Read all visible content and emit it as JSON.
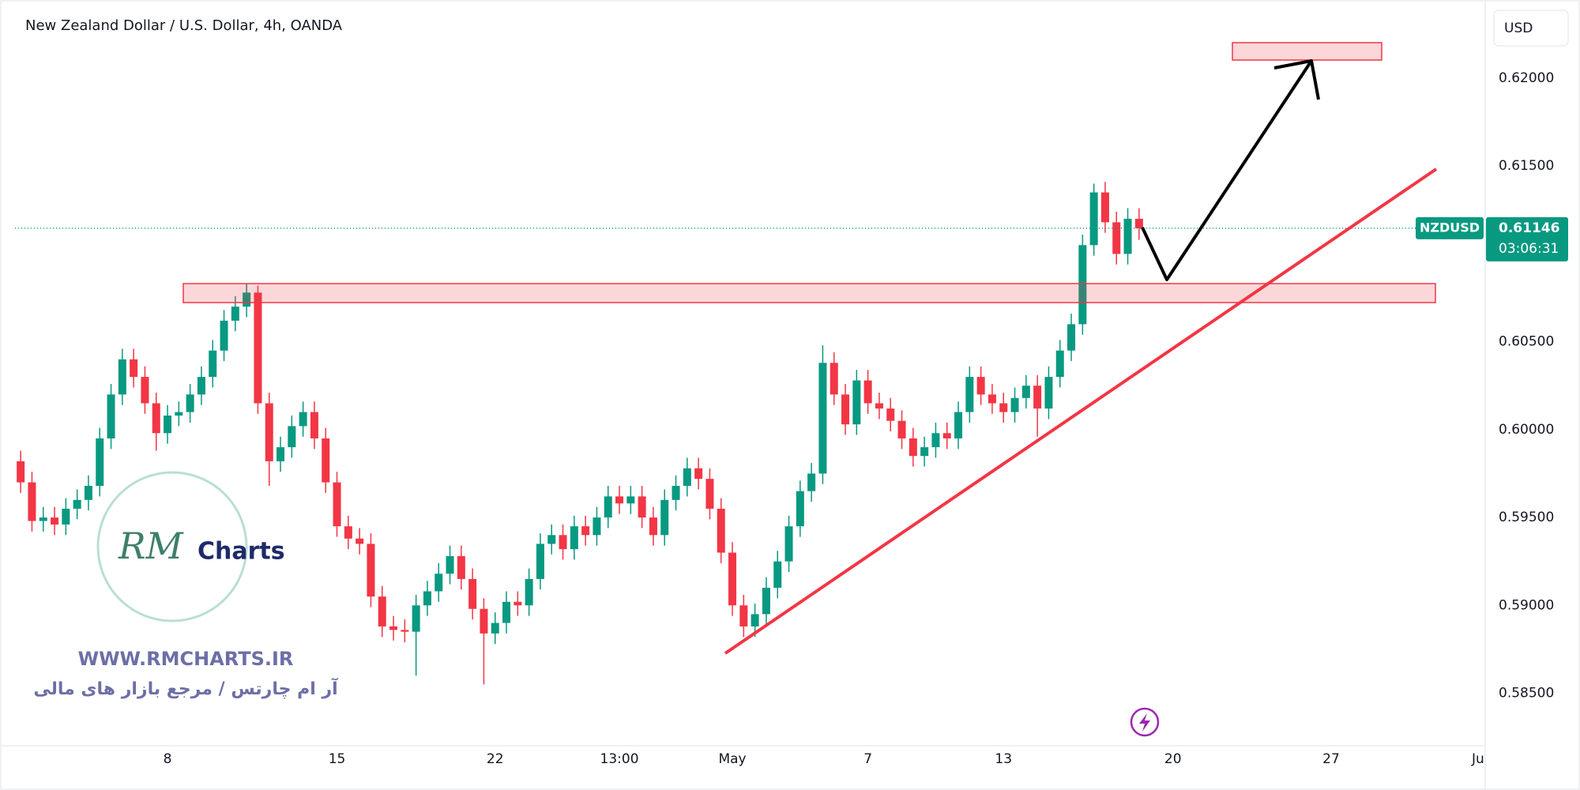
{
  "chart_data": {
    "type": "candlestick",
    "title": "New Zealand Dollar / U.S. Dollar, 4h, OANDA",
    "currency": "USD",
    "symbol": "NZDUSD",
    "last_price": 0.61146,
    "countdown": "03:06:31",
    "categories": [
      null,
      null,
      null,
      null,
      null,
      null,
      null,
      null,
      null,
      null,
      null,
      null,
      null,
      "8",
      null,
      null,
      null,
      null,
      null,
      null,
      null,
      null,
      null,
      null,
      null,
      null,
      null,
      null,
      "15",
      null,
      null,
      null,
      null,
      null,
      null,
      null,
      null,
      null,
      null,
      null,
      null,
      null,
      "22",
      null,
      null,
      null,
      null,
      null,
      null,
      null,
      null,
      null,
      null,
      "13:00",
      null,
      null,
      null,
      null,
      null,
      null,
      null,
      null,
      null,
      "May",
      null,
      null,
      null,
      null,
      null,
      null,
      null,
      null,
      null,
      null,
      null,
      "7",
      null,
      null,
      null,
      null,
      null,
      null,
      null,
      null,
      null,
      null,
      null,
      "13",
      null,
      null,
      null,
      null,
      null,
      null,
      null,
      null,
      null,
      null,
      null,
      null,
      null,
      null,
      "20",
      null,
      null,
      null,
      null,
      null,
      null,
      null,
      null,
      null,
      null,
      null,
      null,
      null,
      "27",
      null,
      null,
      null,
      null,
      null,
      null,
      null,
      null,
      null,
      null,
      null,
      null,
      "Ju"
    ],
    "open": [
      0.5982,
      0.597,
      0.5948,
      0.595,
      0.5946,
      0.5955,
      0.596,
      0.5968,
      0.5995,
      0.602,
      0.604,
      0.603,
      0.6015,
      0.5998,
      0.6008,
      0.601,
      0.602,
      0.603,
      0.6045,
      0.6062,
      0.607,
      0.6078,
      0.6015,
      0.5982,
      0.599,
      0.6002,
      0.601,
      0.5995,
      0.597,
      0.5945,
      0.5938,
      0.5935,
      0.5905,
      0.5888,
      0.5886,
      0.5885,
      0.59,
      0.5908,
      0.5918,
      0.5928,
      0.5915,
      0.5898,
      0.5884,
      0.589,
      0.5902,
      0.59,
      0.5915,
      0.5935,
      0.594,
      0.5932,
      0.5945,
      0.594,
      0.595,
      0.5962,
      0.5958,
      0.5962,
      0.595,
      0.594,
      0.596,
      0.5968,
      0.5978,
      0.5972,
      0.5955,
      0.593,
      0.59,
      0.5888,
      0.5895,
      0.591,
      0.5925,
      0.5945,
      0.5965,
      0.5975,
      0.6038,
      0.602,
      0.6003,
      0.6028,
      0.6015,
      0.6012,
      0.6005,
      0.5995,
      0.5985,
      0.599,
      0.5998,
      0.5995,
      0.601,
      0.603,
      0.602,
      0.6015,
      0.601,
      0.6018,
      0.6025,
      0.6012,
      0.603,
      0.6045,
      0.606,
      0.6105,
      0.6135,
      0.6118,
      0.61,
      0.612,
      null,
      null,
      null,
      null,
      null,
      null,
      null,
      null,
      null,
      null,
      null,
      null,
      null,
      null,
      null,
      null,
      null,
      null,
      null,
      null,
      null,
      null,
      null,
      null,
      null,
      null,
      null,
      null,
      null,
      null
    ],
    "high": [
      0.5988,
      0.5976,
      0.5956,
      0.5956,
      0.5961,
      0.5966,
      0.5974,
      0.6001,
      0.6026,
      0.6046,
      0.6046,
      0.6036,
      0.6021,
      0.6014,
      0.6016,
      0.6026,
      0.6036,
      0.6051,
      0.6068,
      0.6076,
      0.6083,
      0.6082,
      0.6021,
      0.5996,
      0.6008,
      0.6016,
      0.6016,
      0.6001,
      0.5976,
      0.5951,
      0.5944,
      0.5941,
      0.5911,
      0.5894,
      0.5892,
      0.5906,
      0.5914,
      0.5924,
      0.5934,
      0.5934,
      0.5921,
      0.5904,
      0.5896,
      0.5908,
      0.5908,
      0.5921,
      0.5941,
      0.5946,
      0.5946,
      0.5951,
      0.5951,
      0.5956,
      0.5968,
      0.5968,
      0.5968,
      0.5968,
      0.5956,
      0.5966,
      0.5974,
      0.5984,
      0.5984,
      0.5978,
      0.5961,
      0.5936,
      0.5906,
      0.5901,
      0.5916,
      0.5931,
      0.5951,
      0.5971,
      0.5981,
      0.6048,
      0.6044,
      0.6026,
      0.6034,
      0.6034,
      0.6021,
      0.6018,
      0.6011,
      0.6001,
      0.5996,
      0.6004,
      0.6004,
      0.6016,
      0.6036,
      0.6036,
      0.6026,
      0.6021,
      0.6024,
      0.6031,
      0.6031,
      0.6036,
      0.6051,
      0.6066,
      0.6111,
      0.614,
      0.6141,
      0.6124,
      0.6126,
      0.6126,
      null,
      null,
      null,
      null,
      null,
      null,
      null,
      null,
      null,
      null,
      null,
      null,
      null,
      null,
      null,
      null,
      null,
      null,
      null,
      null,
      null,
      null,
      null,
      null,
      null,
      null,
      null,
      null,
      null,
      null
    ],
    "low": [
      0.5964,
      0.5942,
      0.5942,
      0.594,
      0.594,
      0.5949,
      0.5954,
      0.5962,
      0.5989,
      0.6014,
      0.6024,
      0.6009,
      0.5988,
      0.5992,
      0.6002,
      0.6004,
      0.6014,
      0.6024,
      0.6039,
      0.6056,
      0.6064,
      0.6009,
      0.5968,
      0.5976,
      0.5984,
      0.5996,
      0.5989,
      0.5964,
      0.5939,
      0.5932,
      0.5929,
      0.5899,
      0.5882,
      0.588,
      0.5879,
      0.586,
      0.5894,
      0.5902,
      0.5912,
      0.5909,
      0.5892,
      0.5855,
      0.5878,
      0.5884,
      0.5894,
      0.5894,
      0.5909,
      0.5929,
      0.5926,
      0.5926,
      0.5934,
      0.5934,
      0.5944,
      0.5952,
      0.5952,
      0.5944,
      0.5934,
      0.5934,
      0.5954,
      0.5962,
      0.5966,
      0.5949,
      0.5924,
      0.5894,
      0.5882,
      0.5882,
      0.5889,
      0.5904,
      0.5919,
      0.5939,
      0.5959,
      0.5969,
      0.6014,
      0.5997,
      0.5997,
      0.6009,
      0.6006,
      0.5999,
      0.5989,
      0.5979,
      0.5979,
      0.5984,
      0.5989,
      0.5989,
      0.6004,
      0.6014,
      0.6009,
      0.6004,
      0.6004,
      0.6012,
      0.5996,
      0.6006,
      0.6024,
      0.6039,
      0.6054,
      0.6099,
      0.6112,
      0.6094,
      0.6094,
      0.6108,
      null,
      null,
      null,
      null,
      null,
      null,
      null,
      null,
      null,
      null,
      null,
      null,
      null,
      null,
      null,
      null,
      null,
      null,
      null,
      null,
      null,
      null,
      null,
      null,
      null,
      null,
      null,
      null,
      null,
      null
    ],
    "close": [
      0.597,
      0.5948,
      0.595,
      0.5946,
      0.5955,
      0.596,
      0.5968,
      0.5995,
      0.602,
      0.604,
      0.603,
      0.6015,
      0.5998,
      0.6008,
      0.601,
      0.602,
      0.603,
      0.6045,
      0.6062,
      0.607,
      0.6078,
      0.6015,
      0.5982,
      0.599,
      0.6002,
      0.601,
      0.5995,
      0.597,
      0.5945,
      0.5938,
      0.5935,
      0.5905,
      0.5888,
      0.5886,
      0.5885,
      0.59,
      0.5908,
      0.5918,
      0.5928,
      0.5915,
      0.5898,
      0.5884,
      0.589,
      0.5902,
      0.59,
      0.5915,
      0.5935,
      0.594,
      0.5932,
      0.5945,
      0.594,
      0.595,
      0.5962,
      0.5958,
      0.5962,
      0.595,
      0.594,
      0.596,
      0.5968,
      0.5978,
      0.5972,
      0.5955,
      0.593,
      0.59,
      0.5888,
      0.5895,
      0.591,
      0.5925,
      0.5945,
      0.5965,
      0.5975,
      0.6038,
      0.602,
      0.6003,
      0.6028,
      0.6015,
      0.6012,
      0.6005,
      0.5995,
      0.5985,
      0.599,
      0.5998,
      0.5995,
      0.601,
      0.603,
      0.602,
      0.6015,
      0.601,
      0.6018,
      0.6025,
      0.6012,
      0.603,
      0.6045,
      0.606,
      0.6105,
      0.6135,
      0.6118,
      0.61,
      0.612,
      0.61146,
      null,
      null,
      null,
      null,
      null,
      null,
      null,
      null,
      null,
      null,
      null,
      null,
      null,
      null,
      null,
      null,
      null,
      null,
      null,
      null,
      null,
      null,
      null,
      null,
      null,
      null,
      null,
      null,
      null,
      null
    ],
    "up_color": "#089981",
    "down_color": "#f23645",
    "ylim": [
      0.5821,
      0.624
    ],
    "yticks": [
      {
        "value": 0.585,
        "label": "0.58500"
      },
      {
        "value": 0.59,
        "label": "0.59000"
      },
      {
        "value": 0.595,
        "label": "0.59500"
      },
      {
        "value": 0.6,
        "label": "0.60000"
      },
      {
        "value": 0.605,
        "label": "0.60500"
      },
      {
        "value": 0.61,
        "label": "0.61000"
      },
      {
        "value": 0.615,
        "label": "0.61500"
      },
      {
        "value": 0.62,
        "label": "0.62000"
      }
    ],
    "grid": false
  },
  "watermark": {
    "logo_initials": "RM",
    "logo_word": "Charts",
    "url": "WWW.RMCHARTS.IR",
    "tagline": "آر ام چارتس / مرجع بازار های مالی"
  }
}
